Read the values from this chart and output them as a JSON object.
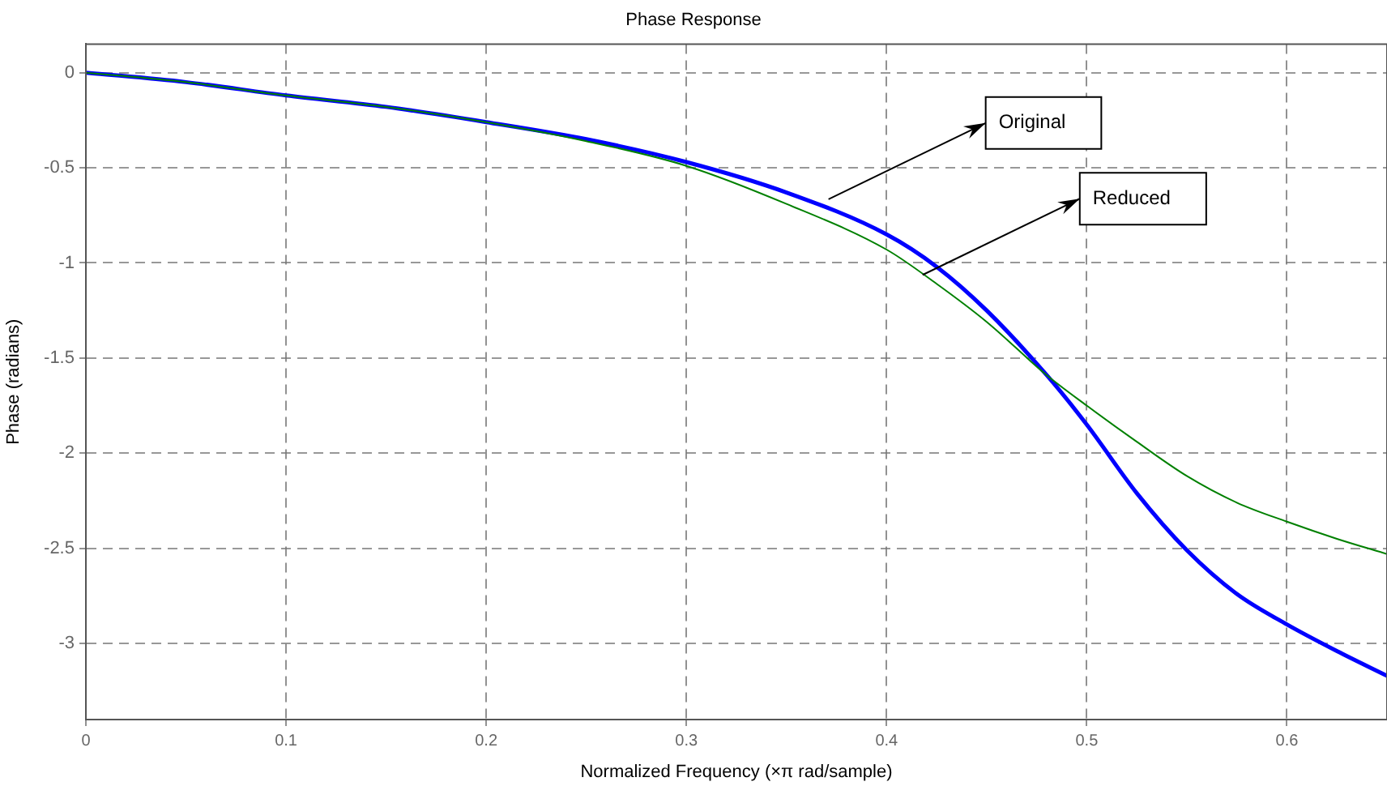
{
  "chart_data": {
    "type": "line",
    "title": "Phase Response",
    "xlabel": "Normalized Frequency (×π rad/sample)",
    "ylabel": "Phase (radians)",
    "x": [
      0,
      0.05,
      0.1,
      0.15,
      0.2,
      0.25,
      0.3,
      0.35,
      0.4,
      0.425,
      0.45,
      0.48,
      0.5,
      0.525,
      0.55,
      0.575,
      0.6,
      0.625,
      0.65
    ],
    "series": [
      {
        "type": "line",
        "color": "#0000ff",
        "values": [
          0,
          -0.05,
          -0.12,
          -0.18,
          -0.26,
          -0.35,
          -0.47,
          -0.63,
          -0.85,
          -1.02,
          -1.25,
          -1.59,
          -1.85,
          -2.21,
          -2.51,
          -2.74,
          -2.9,
          -3.04,
          -3.17
        ]
      },
      {
        "type": "line",
        "color": "#008000",
        "values": [
          0,
          -0.05,
          -0.12,
          -0.18,
          -0.26,
          -0.36,
          -0.49,
          -0.69,
          -0.93,
          -1.11,
          -1.31,
          -1.59,
          -1.75,
          -1.94,
          -2.12,
          -2.26,
          -2.36,
          -2.45,
          -2.53
        ]
      }
    ],
    "xlim": [
      0,
      0.65
    ],
    "xticks": [
      0,
      0.1,
      0.2,
      0.3,
      0.4,
      0.5,
      0.6
    ],
    "ylim": [
      -3.4,
      0.15
    ],
    "yticks": [
      0,
      -0.5,
      -1,
      -1.5,
      -2,
      -2.5,
      -3
    ],
    "grid": true,
    "legend": false,
    "marker": "none",
    "line_style": "solid",
    "annotations": [
      {
        "text": "Original",
        "x": 0.371,
        "y": -0.665
      },
      {
        "text": "Reduced",
        "x": 0.418,
        "y": -1.063
      }
    ]
  }
}
